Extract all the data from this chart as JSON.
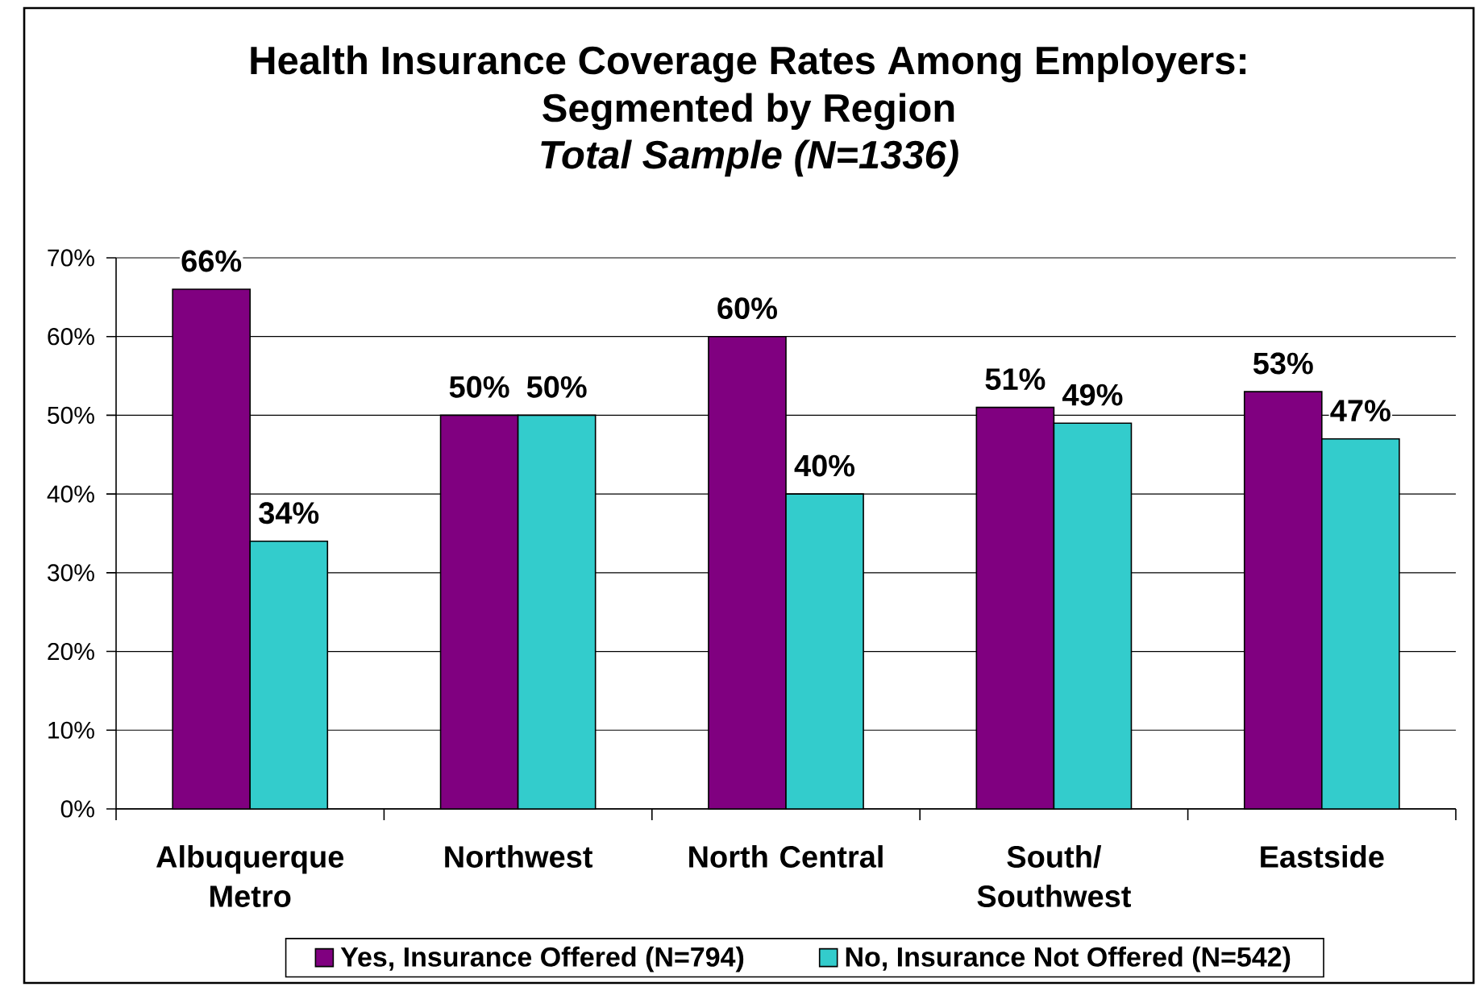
{
  "chart_data": {
    "type": "bar",
    "title": "Health Insurance Coverage Rates Among Employers: Segmented by Region",
    "subtitle": "Total Sample (N=1336)",
    "categories": [
      "Albuquerque Metro",
      "Northwest",
      "North Central",
      "South/ Southwest",
      "Eastside"
    ],
    "series": [
      {
        "name": "Yes, Insurance Offered (N=794)",
        "color": "#800080",
        "values": [
          66,
          50,
          60,
          51,
          53
        ],
        "value_labels": [
          "66%",
          "50%",
          "60%",
          "51%",
          "53%"
        ]
      },
      {
        "name": "No, Insurance Not Offered (N=542)",
        "color": "#33cccc",
        "values": [
          34,
          50,
          40,
          49,
          47
        ],
        "value_labels": [
          "34%",
          "50%",
          "40%",
          "49%",
          "47%"
        ]
      }
    ],
    "ylim": [
      0,
      70
    ],
    "yticks": [
      {
        "value": 0,
        "label": "0%"
      },
      {
        "value": 10,
        "label": "10%"
      },
      {
        "value": 20,
        "label": "20%"
      },
      {
        "value": 30,
        "label": "30%"
      },
      {
        "value": 40,
        "label": "40%"
      },
      {
        "value": 50,
        "label": "50%"
      },
      {
        "value": 60,
        "label": "60%"
      },
      {
        "value": 70,
        "label": "70%"
      }
    ],
    "grid": "y",
    "legend": "bottom"
  }
}
